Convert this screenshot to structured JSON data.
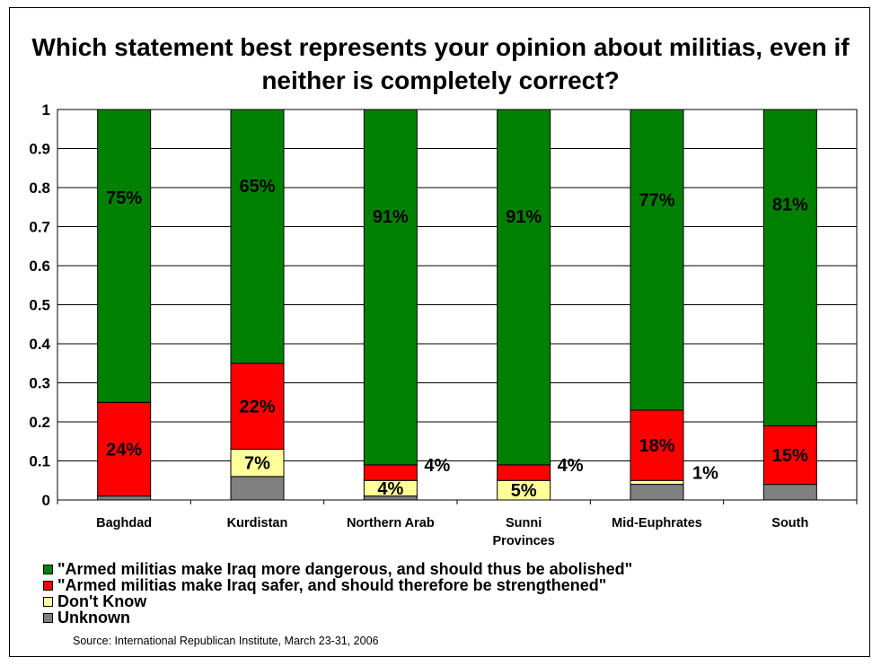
{
  "title": "Which statement best represents your opinion about militias, even if neither is completely correct?",
  "source": "Source: International Republican Institute, March 23-31, 2006",
  "chart_data": {
    "type": "bar",
    "stacked": true,
    "categories": [
      "Baghdad",
      "Kurdistan",
      "Northern Arab",
      "Sunni Provinces",
      "Mid-Euphrates",
      "South"
    ],
    "ylim": [
      0,
      1
    ],
    "yticks": [
      "0",
      "0.1",
      "0.2",
      "0.3",
      "0.4",
      "0.5",
      "0.6",
      "0.7",
      "0.8",
      "0.9",
      "1"
    ],
    "grid": true,
    "legend_position": "bottom",
    "series": [
      {
        "name": "Unknown",
        "color": "#808080",
        "values": [
          0.01,
          0.06,
          0.01,
          0.0,
          0.04,
          0.04
        ],
        "labels": [
          "",
          "",
          "",
          "",
          "",
          ""
        ]
      },
      {
        "name": "Don't Know",
        "color": "#ffff99",
        "values": [
          0.0,
          0.07,
          0.04,
          0.05,
          0.01,
          0.0
        ],
        "labels": [
          "",
          "7%",
          "4%",
          "5%",
          "1%",
          ""
        ]
      },
      {
        "name": "\"Armed militias make Iraq safer, and should therefore be strengthened\"",
        "color": "#ff0000",
        "values": [
          0.24,
          0.22,
          0.04,
          0.04,
          0.18,
          0.15
        ],
        "labels": [
          "24%",
          "22%",
          "4%",
          "4%",
          "18%",
          "15%"
        ]
      },
      {
        "name": "\"Armed militias make Iraq more dangerous, and should thus be abolished\"",
        "color": "#008000",
        "values": [
          0.75,
          0.65,
          0.91,
          0.91,
          0.77,
          0.81
        ],
        "labels": [
          "75%",
          "65%",
          "91%",
          "91%",
          "77%",
          "81%"
        ]
      }
    ],
    "legend": [
      {
        "label": "\"Armed militias make Iraq more dangerous, and should thus be abolished\"",
        "color": "#008000"
      },
      {
        "label": "\"Armed militias make Iraq safer, and should therefore be strengthened\"",
        "color": "#ff0000"
      },
      {
        "label": "Don't Know",
        "color": "#ffff99"
      },
      {
        "label": "Unknown",
        "color": "#808080"
      }
    ]
  }
}
